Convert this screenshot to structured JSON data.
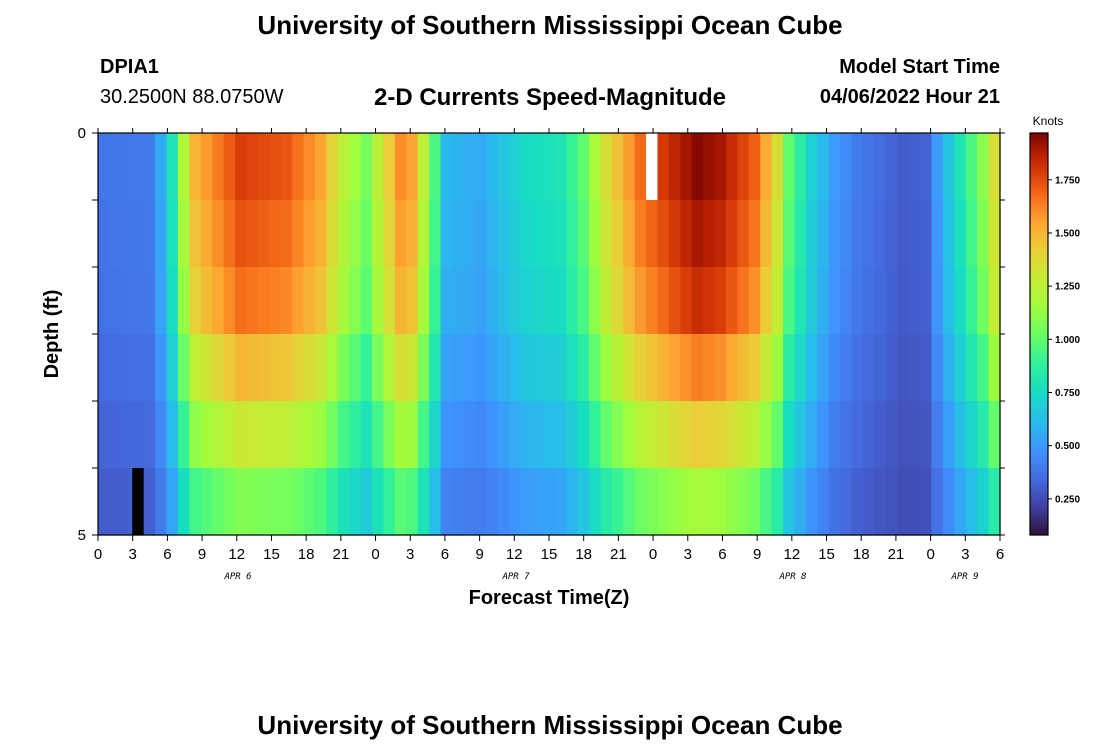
{
  "header": {
    "title_top": "University of Southern Mississippi Ocean Cube",
    "title_bottom": "University of Southern Mississippi Ocean Cube",
    "station_id": "DPIA1",
    "station_coords": "30.2500N  88.0750W",
    "chart_title": "2-D Currents Speed-Magnitude",
    "model_start_label": "Model Start Time",
    "model_start_value": "04/06/2022 Hour 21"
  },
  "chart_data": {
    "type": "heatmap",
    "title": "2-D Currents Speed-Magnitude",
    "xlabel": "Forecast Time(Z)",
    "ylabel": "Depth (ft)",
    "colorbar_label": "Knots",
    "colorbar_ticks": [
      "0.250",
      "0.500",
      "0.750",
      "1.000",
      "1.250",
      "1.500",
      "1.750"
    ],
    "colorbar_range": [
      0.08,
      1.97
    ],
    "x_tick_labels": [
      "0",
      "3",
      "6",
      "9",
      "12",
      "15",
      "18",
      "21",
      "0",
      "3",
      "6",
      "9",
      "12",
      "15",
      "18",
      "21",
      "0",
      "3",
      "6",
      "9",
      "12",
      "15",
      "18",
      "21",
      "0",
      "3",
      "6"
    ],
    "day_labels": [
      "APR 6",
      "APR 7",
      "APR 8",
      "APR 9"
    ],
    "y_tick_labels": [
      "0",
      "5"
    ],
    "ylim": [
      0,
      5
    ],
    "depth_levels": 6,
    "time_steps": 79,
    "speed_profile_knots": [
      [
        0,
        0.38
      ],
      [
        4,
        0.4
      ],
      [
        5,
        0.55
      ],
      [
        6,
        0.8
      ],
      [
        7,
        1.2
      ],
      [
        8,
        1.5
      ],
      [
        12,
        1.78
      ],
      [
        16,
        1.72
      ],
      [
        19,
        1.55
      ],
      [
        21,
        1.25
      ],
      [
        23,
        1.05
      ],
      [
        24,
        1.25
      ],
      [
        26,
        1.6
      ],
      [
        27,
        1.55
      ],
      [
        28,
        1.25
      ],
      [
        29,
        0.95
      ],
      [
        30,
        0.6
      ],
      [
        33,
        0.55
      ],
      [
        37,
        0.75
      ],
      [
        40,
        0.8
      ],
      [
        42,
        1.0
      ],
      [
        44,
        1.35
      ],
      [
        47,
        1.68
      ],
      [
        50,
        1.85
      ],
      [
        52,
        1.95
      ],
      [
        54,
        1.9
      ],
      [
        57,
        1.7
      ],
      [
        59,
        1.35
      ],
      [
        60,
        1.0
      ],
      [
        62,
        0.7
      ],
      [
        64,
        0.5
      ],
      [
        66,
        0.4
      ],
      [
        70,
        0.3
      ],
      [
        72,
        0.32
      ],
      [
        73,
        0.5
      ],
      [
        75,
        0.8
      ],
      [
        77,
        1.1
      ],
      [
        78,
        1.35
      ]
    ],
    "depth_attenuation": [
      1.0,
      0.97,
      0.93,
      0.82,
      0.7,
      0.56
    ],
    "missing_cells": [
      {
        "time_step": 48,
        "depth_level": 0,
        "color": "#ffffff"
      },
      {
        "time_step": 3,
        "depth_level": 5,
        "color": "#000000"
      }
    ]
  }
}
